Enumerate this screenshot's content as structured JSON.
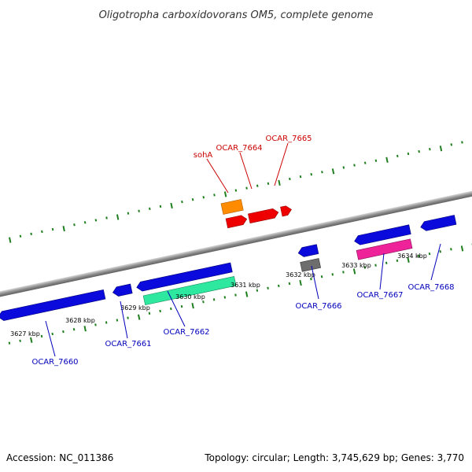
{
  "title": "Oligotropha carboxidovorans OM5, complete genome",
  "footer": {
    "accession": "Accession: NC_011386",
    "topology": "Topology: circular; Length: 3,745,629 bp; Genes: 3,770"
  },
  "colors": {
    "backbone": "#8f8f8f",
    "ticks": "#1f7f1f",
    "forward_label": "#cc0000",
    "reverse_label": "#0000bb",
    "blue_gene": "#0a0adc",
    "red_gene": "#ee0000",
    "orange_gene": "#ff8c00",
    "gray_gene": "#6e6e6e",
    "teal_gene": "#2ee8a0",
    "pink_gene": "#ee2299"
  },
  "scale_labels": [
    "3627 kbp",
    "3628 kbp",
    "3629 kbp",
    "3630 kbp",
    "3631 kbp",
    "3632 kbp",
    "3633 kbp",
    "3634 kbp"
  ],
  "forward_labels": [
    "sohA",
    "OCAR_7664",
    "OCAR_7665"
  ],
  "reverse_labels": [
    "OCAR_7660",
    "OCAR_7661",
    "OCAR_7662",
    "OCAR_7666",
    "OCAR_7667",
    "OCAR_7668"
  ]
}
